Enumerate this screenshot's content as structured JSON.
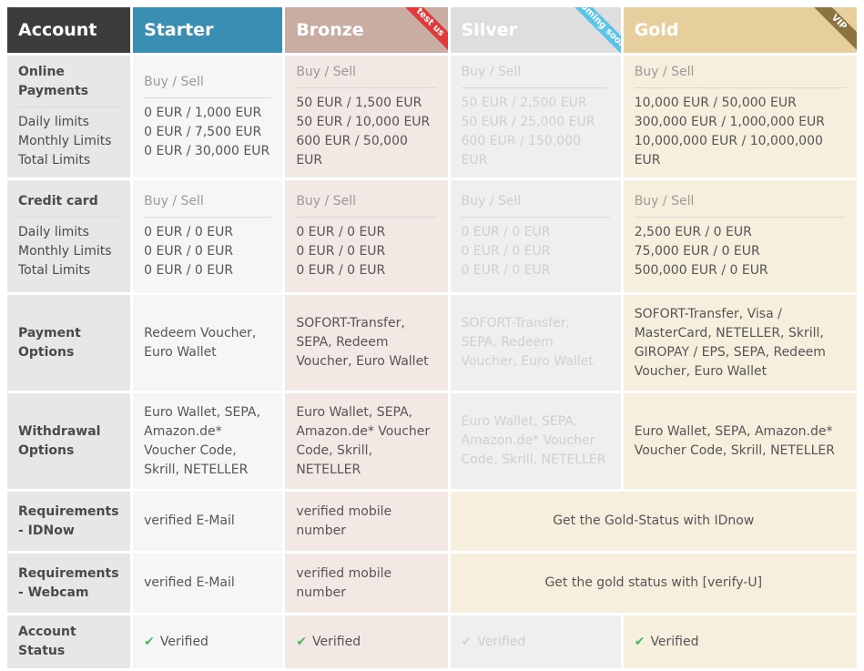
{
  "header": {
    "account": "Account",
    "starter": "Starter",
    "bronze": "Bronze",
    "silver": "Silver",
    "gold": "Gold",
    "ribbons": {
      "bronze": "test us",
      "silver": "coming soon",
      "gold": "VIP"
    }
  },
  "rows": {
    "online": {
      "label": "Online Payments",
      "sublabels": [
        "Daily limits",
        "Monthly Limits",
        "Total Limits"
      ],
      "buy_sell": "Buy / Sell",
      "starter": [
        "0 EUR / 1,000 EUR",
        "0 EUR / 7,500 EUR",
        "0 EUR / 30,000 EUR"
      ],
      "bronze": [
        "50 EUR / 1,500 EUR",
        "50 EUR / 10,000 EUR",
        "600 EUR / 50,000 EUR"
      ],
      "silver": [
        "50 EUR / 2,500 EUR",
        "50 EUR / 25,000 EUR",
        "600 EUR / 150,000 EUR"
      ],
      "gold": [
        "10,000 EUR / 50,000 EUR",
        "300,000 EUR / 1,000,000 EUR",
        "10,000,000 EUR / 10,000,000 EUR"
      ]
    },
    "credit": {
      "label": "Credit card",
      "sublabels": [
        "Daily limits",
        "Monthly Limits",
        "Total Limits"
      ],
      "buy_sell": "Buy / Sell",
      "starter": [
        "0 EUR / 0 EUR",
        "0 EUR / 0 EUR",
        "0 EUR / 0 EUR"
      ],
      "bronze": [
        "0 EUR / 0 EUR",
        "0 EUR / 0 EUR",
        "0 EUR / 0 EUR"
      ],
      "silver": [
        "0 EUR / 0 EUR",
        "0 EUR / 0 EUR",
        "0 EUR / 0 EUR"
      ],
      "gold": [
        "2,500 EUR / 0 EUR",
        "75,000 EUR / 0 EUR",
        "500,000 EUR / 0 EUR"
      ]
    },
    "payment": {
      "label": "Payment Options",
      "starter": "Redeem Voucher, Euro Wallet",
      "bronze": "SOFORT-Transfer, SEPA, Redeem Voucher, Euro Wallet",
      "silver": "SOFORT-Transfer, SEPA, Redeem Voucher, Euro Wallet",
      "gold": "SOFORT-Transfer, Visa / MasterCard, NETELLER, Skrill, GIROPAY / EPS, SEPA, Redeem Voucher, Euro Wallet"
    },
    "withdrawal": {
      "label": "Withdrawal Options",
      "starter": "Euro Wallet, SEPA, Amazon.de* Voucher Code, Skrill, NETELLER",
      "bronze": "Euro Wallet, SEPA, Amazon.de* Voucher Code, Skrill, NETELLER",
      "silver": "Euro Wallet, SEPA, Amazon.de* Voucher Code, Skrill, NETELLER",
      "gold": "Euro Wallet, SEPA, Amazon.de* Voucher Code, Skrill, NETELLER"
    },
    "idnow": {
      "label": "Requirements - IDNow",
      "starter": "verified E-Mail",
      "bronze": "verified mobile number",
      "gold_span": "Get the Gold-Status with IDnow"
    },
    "webcam": {
      "label": "Requirements - Webcam",
      "starter": "verified E-Mail",
      "bronze": "verified mobile number",
      "gold_span": "Get the gold status with [verify-U]"
    },
    "status": {
      "label": "Account Status",
      "starter": "Verified",
      "bronze": "Verified",
      "silver": "Verified",
      "gold": "Verified"
    }
  },
  "colors": {
    "header_account": "#3c3c3c",
    "header_starter": "#3a8eb3",
    "header_bronze": "#c9aca2",
    "header_silver": "#dedede",
    "header_gold": "#e6cf9d",
    "check": "#4fb35f"
  },
  "icons": {
    "check": "check-icon"
  }
}
